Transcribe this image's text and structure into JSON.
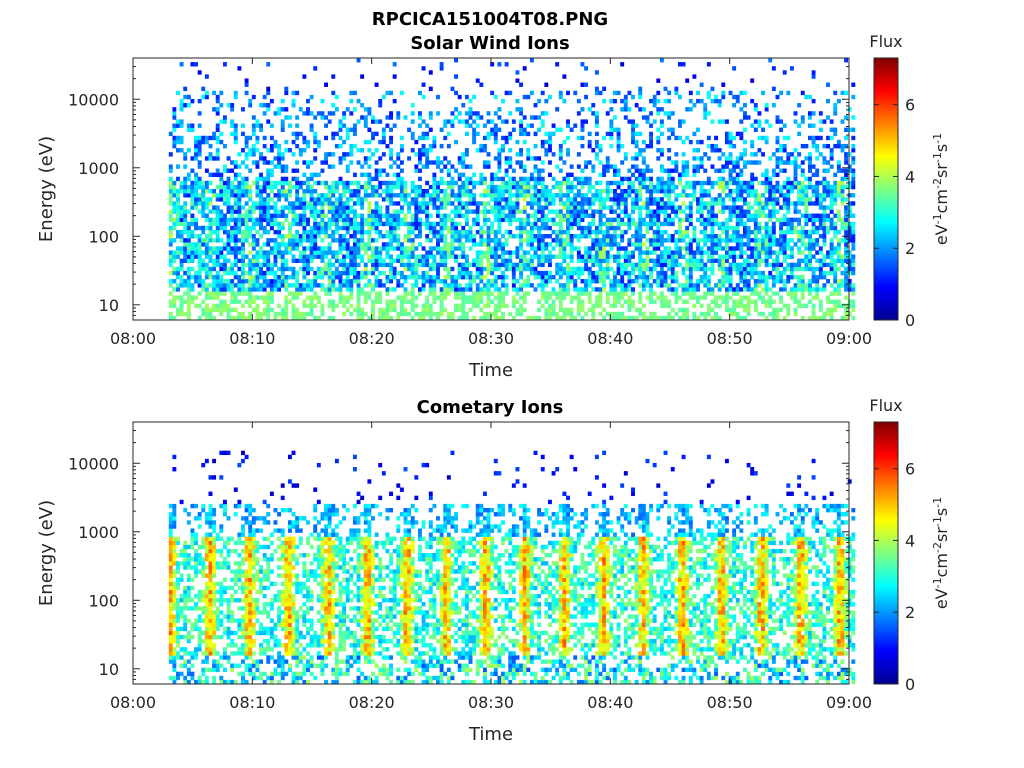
{
  "figure_title": "RPCICA151004T08.PNG",
  "chart_data": [
    {
      "type": "heatmap",
      "title": "Solar Wind Ions",
      "xlabel": "Time",
      "ylabel": "Energy (eV)",
      "y_scale": "log",
      "xlim": [
        "08:00",
        "09:00"
      ],
      "ylim": [
        6,
        40000
      ],
      "x_ticks": [
        "08:00",
        "08:10",
        "08:20",
        "08:30",
        "08:40",
        "08:50",
        "09:00"
      ],
      "y_ticks": [
        "10",
        "100",
        "1000",
        "10000"
      ],
      "data_start": "08:03",
      "data_end": "09:00",
      "colorbar": {
        "title": "Flux",
        "label": "eV-1cm-2sr-1s-1",
        "label_parts": [
          "eV",
          "-1",
          "cm",
          "-2",
          "sr",
          "-1",
          "s",
          "-1"
        ],
        "range": [
          0,
          7.3
        ],
        "ticks": [
          "0",
          "2",
          "4",
          "6"
        ],
        "colormap": "jet"
      }
    },
    {
      "type": "heatmap",
      "title": "Cometary Ions",
      "xlabel": "Time",
      "ylabel": "Energy (eV)",
      "y_scale": "log",
      "xlim": [
        "08:00",
        "09:00"
      ],
      "ylim": [
        6,
        40000
      ],
      "x_ticks": [
        "08:00",
        "08:10",
        "08:20",
        "08:30",
        "08:40",
        "08:50",
        "09:00"
      ],
      "y_ticks": [
        "10",
        "100",
        "1000",
        "10000"
      ],
      "data_start": "08:03",
      "data_end": "09:00",
      "colorbar": {
        "title": "Flux",
        "label": "eV-1cm-2sr-1s-1",
        "label_parts": [
          "eV",
          "-1",
          "cm",
          "-2",
          "sr",
          "-1",
          "s",
          "-1"
        ],
        "range": [
          0,
          7.3
        ],
        "ticks": [
          "0",
          "2",
          "4",
          "6"
        ],
        "colormap": "jet"
      }
    }
  ]
}
